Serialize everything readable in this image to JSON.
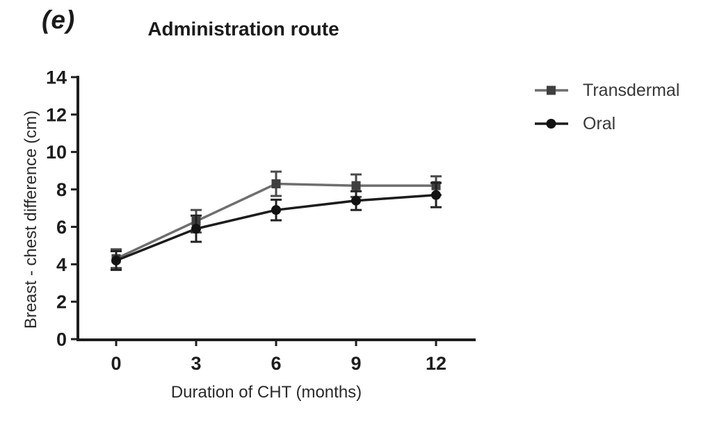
{
  "figure": {
    "panel_label": "(e)",
    "background_color": "#ffffff",
    "axis_color": "#1d1d1d",
    "text_color": "#2a2a2a"
  },
  "chart_data": {
    "type": "line",
    "title": "Administration route",
    "xlabel": "Duration of CHT (months)",
    "ylabel": "Breast - chest difference (cm)",
    "x": [
      0,
      3,
      6,
      9,
      12
    ],
    "xticks": [
      "0",
      "3",
      "6",
      "9",
      "12"
    ],
    "yticks": [
      "0",
      "2",
      "4",
      "6",
      "8",
      "10",
      "12",
      "14"
    ],
    "ytick_values": [
      0,
      2,
      4,
      6,
      8,
      10,
      12,
      14
    ],
    "xlim": [
      -1.5,
      13.5
    ],
    "ylim": [
      0,
      14
    ],
    "grid": false,
    "error_bars": "symmetric, with caps",
    "legend_position": "right of plot",
    "series": [
      {
        "name": "Transdermal",
        "marker": "square",
        "line_color": "#6e6e6e",
        "marker_color": "#3f3f3f",
        "error_color": "#4a4a4a",
        "values": [
          4.3,
          6.3,
          8.3,
          8.2,
          8.2
        ],
        "errors": [
          0.5,
          0.6,
          0.65,
          0.6,
          0.5
        ]
      },
      {
        "name": "Oral",
        "marker": "circle",
        "line_color": "#1c1c1c",
        "marker_color": "#121212",
        "error_color": "#222222",
        "values": [
          4.2,
          5.9,
          6.9,
          7.4,
          7.7
        ],
        "errors": [
          0.5,
          0.7,
          0.55,
          0.5,
          0.65
        ]
      }
    ]
  }
}
